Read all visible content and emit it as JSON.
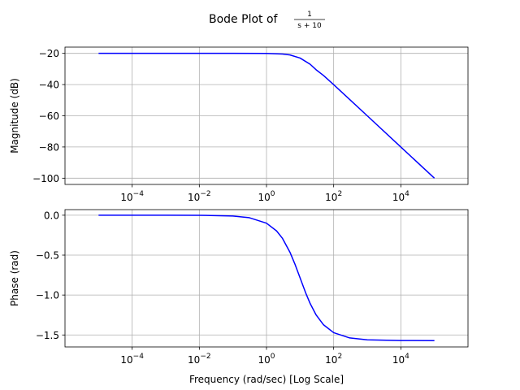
{
  "chart_data": [
    {
      "type": "line",
      "title_prefix": "Bode Plot of ",
      "title_frac_num": "1",
      "title_frac_den": "s + 10",
      "xlabel": "",
      "ylabel": "Magnitude (dB)",
      "xscale": "log",
      "xlim": [
        1e-06,
        1000000.0
      ],
      "ylim": [
        -104,
        -16
      ],
      "xticks": [
        {
          "value": 0.0001,
          "base": "10",
          "exp": "−4"
        },
        {
          "value": 0.01,
          "base": "10",
          "exp": "−2"
        },
        {
          "value": 1,
          "base": "10",
          "exp": "0"
        },
        {
          "value": 100,
          "base": "10",
          "exp": "2"
        },
        {
          "value": 10000,
          "base": "10",
          "exp": "4"
        }
      ],
      "yticks": [
        {
          "value": -20,
          "label": "−20"
        },
        {
          "value": -40,
          "label": "−40"
        },
        {
          "value": -60,
          "label": "−60"
        },
        {
          "value": -80,
          "label": "−80"
        },
        {
          "value": -100,
          "label": "−100"
        }
      ],
      "grid": true,
      "series": [
        {
          "color": "#0000ff",
          "x": [
            1e-05,
            0.001,
            0.1,
            1,
            3,
            5,
            10,
            20,
            30,
            50,
            100,
            1000,
            10000,
            100000
          ],
          "values": [
            -20,
            -20,
            -20,
            -20.04,
            -20.4,
            -21,
            -23,
            -27,
            -30.5,
            -34.2,
            -40.04,
            -60,
            -80,
            -100
          ]
        }
      ]
    },
    {
      "type": "line",
      "xlabel": "Frequency (rad/sec) [Log Scale]",
      "ylabel": "Phase (rad)",
      "xscale": "log",
      "xlim": [
        1e-06,
        1000000.0
      ],
      "ylim": [
        -1.65,
        0.07
      ],
      "xticks": [
        {
          "value": 0.0001,
          "base": "10",
          "exp": "−4"
        },
        {
          "value": 0.01,
          "base": "10",
          "exp": "−2"
        },
        {
          "value": 1,
          "base": "10",
          "exp": "0"
        },
        {
          "value": 100,
          "base": "10",
          "exp": "2"
        },
        {
          "value": 10000,
          "base": "10",
          "exp": "4"
        }
      ],
      "yticks": [
        {
          "value": 0,
          "label": "0.0"
        },
        {
          "value": -0.5,
          "label": "−0.5"
        },
        {
          "value": -1,
          "label": "−1.0"
        },
        {
          "value": -1.5,
          "label": "−1.5"
        }
      ],
      "grid": true,
      "series": [
        {
          "color": "#0000ff",
          "x": [
            1e-05,
            0.001,
            0.01,
            0.1,
            0.3,
            1,
            2,
            3,
            5,
            7,
            10,
            15,
            20,
            30,
            50,
            100,
            300,
            1000,
            10000,
            100000
          ],
          "values": [
            0,
            0,
            -0.001,
            -0.01,
            -0.03,
            -0.0997,
            -0.197,
            -0.291,
            -0.464,
            -0.611,
            -0.785,
            -0.983,
            -1.107,
            -1.249,
            -1.373,
            -1.471,
            -1.537,
            -1.561,
            -1.57,
            -1.5707
          ]
        }
      ]
    }
  ]
}
